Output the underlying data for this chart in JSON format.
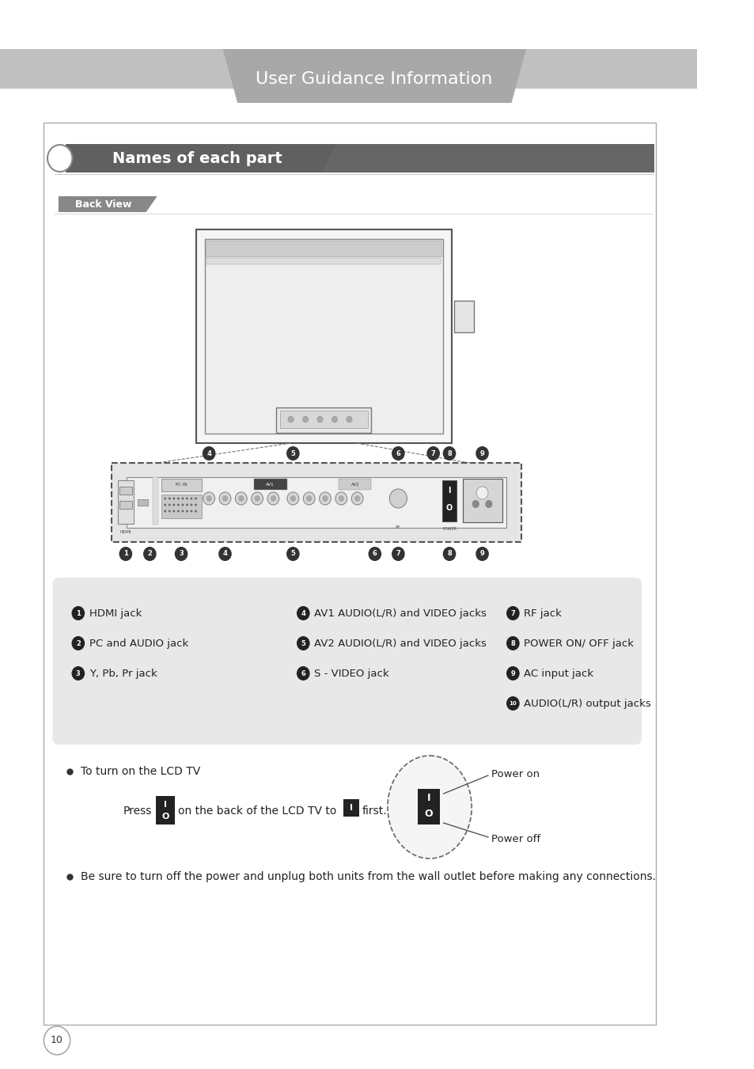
{
  "page_bg": "#ffffff",
  "header_bar_color": "#c0c0c0",
  "header_text": "User Guidance Information",
  "header_text_color": "#ffffff",
  "section_title": "Names of each part",
  "section_title_bg": "#606060",
  "section_title_text_color": "#ffffff",
  "subsection_title": "Back View",
  "subsection_bg": "#888888",
  "subsection_text_color": "#ffffff",
  "info_box_bg": "#e8e8e8",
  "items_col1": [
    [
      "1",
      "HDMI jack"
    ],
    [
      "2",
      "PC and AUDIO jack"
    ],
    [
      "3",
      "Y, Pb, Pr jack"
    ]
  ],
  "items_col2": [
    [
      "4",
      "AV1 AUDIO(L/R) and VIDEO jacks"
    ],
    [
      "5",
      "AV2 AUDIO(L/R) and VIDEO jacks"
    ],
    [
      "6",
      "S - VIDEO jack"
    ]
  ],
  "items_col3": [
    [
      "7",
      "RF jack"
    ],
    [
      "8",
      "POWER ON/ OFF jack"
    ],
    [
      "9",
      "AC input jack"
    ],
    [
      "10",
      "AUDIO(L/R) output jacks"
    ]
  ],
  "bullet_text1": "To turn on the LCD TV",
  "press_text": "Press",
  "middle_text": "on the back of the LCD TV to",
  "first_text": "first.",
  "power_on_label": "Power on",
  "power_off_label": "Power off",
  "bullet_text2": "Be sure to turn off the power and unplug both units from the wall outlet before making any connections.",
  "page_number": "10"
}
